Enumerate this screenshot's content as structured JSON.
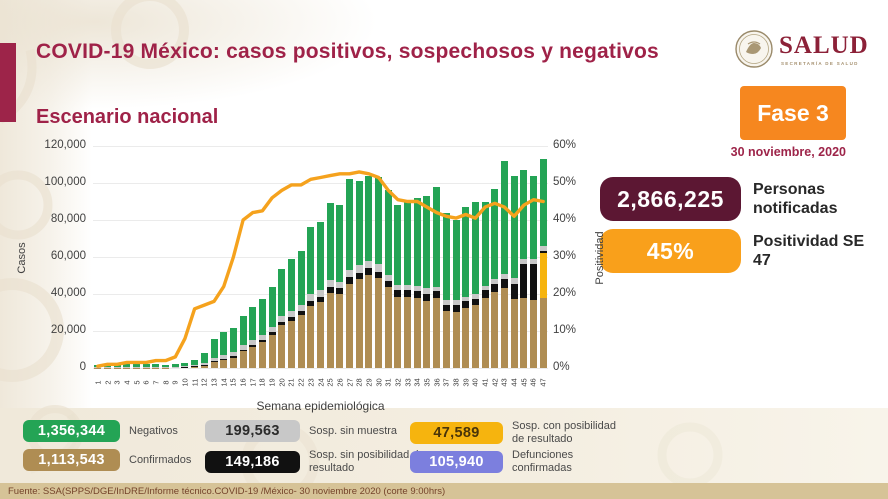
{
  "header": {
    "title": "COVID-19 México: casos positivos, sospechosos y negativos",
    "subtitle": "Escenario nacional",
    "logo_word": "SALUD",
    "logo_sub": "SECRETARÍA DE SALUD",
    "phase_label": "Fase 3",
    "phase_date": "30 noviembre, 2020"
  },
  "stats": [
    {
      "value": "2,866,225",
      "label": "Personas notificadas",
      "color": "#5c1733",
      "text_color": "#ffffff"
    },
    {
      "value": "45%",
      "label": "Positividad SE 47",
      "color": "#f9a01b",
      "text_color": "#ffffff"
    }
  ],
  "chart_data": {
    "type": "bar",
    "stacked": true,
    "xlabel": "Semana epidemiológica",
    "ylabel_left": "Casos",
    "ylabel_right": "Positividad",
    "ylim_left": [
      0,
      120000
    ],
    "ylim_right": [
      0,
      60
    ],
    "grid": true,
    "y_ticks_left": [
      "0",
      "20,000",
      "40,000",
      "60,000",
      "80,000",
      "100,000",
      "120,000"
    ],
    "y_ticks_right": [
      "0%",
      "10%",
      "20%",
      "30%",
      "40%",
      "50%",
      "60%"
    ],
    "categories": [
      "1",
      "2",
      "3",
      "4",
      "5",
      "6",
      "7",
      "8",
      "9",
      "10",
      "11",
      "12",
      "13",
      "14",
      "15",
      "16",
      "17",
      "18",
      "19",
      "20",
      "21",
      "22",
      "23",
      "24",
      "25",
      "26",
      "27",
      "28",
      "29",
      "30",
      "31",
      "32",
      "33",
      "34",
      "35",
      "36",
      "37",
      "38",
      "39",
      "40",
      "41",
      "42",
      "43",
      "44",
      "45",
      "46",
      "47"
    ],
    "series": [
      {
        "name": "Confirmados",
        "color": "#af8d53",
        "values": [
          100,
          150,
          150,
          150,
          200,
          200,
          200,
          200,
          300,
          500,
          800,
          1500,
          3000,
          4200,
          5500,
          9000,
          11500,
          14000,
          18000,
          23000,
          25500,
          28500,
          33500,
          35500,
          40500,
          40000,
          45500,
          48000,
          50500,
          48500,
          44000,
          38500,
          38500,
          38000,
          36000,
          38000,
          31000,
          30500,
          32500,
          34000,
          38000,
          41000,
          43000,
          37500,
          38000,
          37000,
          38000
        ]
      },
      {
        "name": "Sosp. con posibilidad de resultado",
        "color": "#f6b40e",
        "values": [
          0,
          0,
          0,
          0,
          0,
          0,
          0,
          0,
          0,
          0,
          0,
          0,
          0,
          0,
          0,
          0,
          0,
          0,
          0,
          0,
          0,
          0,
          0,
          0,
          0,
          0,
          0,
          0,
          0,
          0,
          0,
          0,
          0,
          0,
          0,
          0,
          0,
          0,
          0,
          0,
          0,
          0,
          0,
          0,
          0,
          0,
          24000
        ]
      },
      {
        "name": "Sosp. sin posibilidad de resultado",
        "color": "#111111",
        "values": [
          0,
          0,
          0,
          0,
          0,
          0,
          0,
          0,
          100,
          100,
          200,
          300,
          600,
          800,
          900,
          1000,
          1200,
          1400,
          1600,
          2000,
          2200,
          2400,
          2800,
          3000,
          3200,
          3000,
          3500,
          3500,
          3500,
          3500,
          3000,
          3500,
          3500,
          3500,
          4000,
          3500,
          3000,
          3500,
          3500,
          3500,
          4000,
          4500,
          5000,
          8000,
          18000,
          19000,
          1500
        ]
      },
      {
        "name": "Sosp. sin muestra",
        "color": "#c8c8c8",
        "values": [
          200,
          300,
          300,
          300,
          300,
          300,
          300,
          300,
          300,
          400,
          600,
          1000,
          1700,
          2000,
          2000,
          2200,
          2400,
          2600,
          2800,
          3000,
          3200,
          3200,
          3500,
          3500,
          3800,
          3500,
          4000,
          4000,
          4000,
          4000,
          3500,
          3000,
          3000,
          3000,
          3000,
          2500,
          2500,
          2500,
          2500,
          2500,
          2500,
          2500,
          3000,
          3000,
          3000,
          3000,
          2500
        ]
      },
      {
        "name": "Negativos",
        "color": "#24a455",
        "values": [
          1200,
          1600,
          1800,
          1750,
          1550,
          1500,
          1500,
          1300,
          1300,
          1800,
          2900,
          5200,
          10200,
          12500,
          13400,
          15800,
          17900,
          19500,
          21600,
          25500,
          28100,
          28900,
          36200,
          37000,
          41500,
          41500,
          49000,
          45500,
          46000,
          47000,
          45500,
          43000,
          45000,
          47500,
          50000,
          54000,
          47500,
          43500,
          48500,
          49500,
          45500,
          49000,
          61000,
          55500,
          48000,
          45000,
          47000
        ]
      }
    ],
    "line_series": {
      "name": "Positividad (%)",
      "color": "#f5a21d",
      "values": [
        0.5,
        1,
        1,
        1.5,
        1.5,
        1.5,
        2,
        2,
        3,
        8,
        16,
        17,
        18,
        22,
        30,
        40,
        42,
        42.5,
        46,
        48,
        49.5,
        49.5,
        51,
        51.5,
        52,
        52.5,
        52.5,
        53,
        52.5,
        51.5,
        48,
        45.5,
        45,
        45,
        43.5,
        42,
        41,
        40.5,
        41.5,
        40.5,
        43.5,
        44.5,
        43.5,
        41,
        44,
        45.5,
        45
      ]
    }
  },
  "legend": {
    "items": [
      {
        "value": "1,356,344",
        "label": "Negativos",
        "color": "#24a455",
        "text_color": "#ffffff"
      },
      {
        "value": "199,563",
        "label": "Sosp. sin muestra",
        "color": "#c8c8c8",
        "text_color": "#2b2b2b"
      },
      {
        "value": "47,589",
        "label": "Sosp. con posibilidad de resultado",
        "color": "#f6b40e",
        "text_color": "#4a3509"
      },
      {
        "value": "1,113,543",
        "label": "Confirmados",
        "color": "#af8d53",
        "text_color": "#ffffff"
      },
      {
        "value": "149,186",
        "label": "Sosp. sin posibilidad de resultado",
        "color": "#111111",
        "text_color": "#ffffff"
      },
      {
        "value": "105,940",
        "label": "Defunciones confirmadas",
        "color": "#7c7fde",
        "text_color": "#ffffff"
      }
    ]
  },
  "footer": {
    "source": "Fuente: SSA(SPPS/DGE/InDRE/Informe técnico.COVID-19 /México- 30 noviembre 2020 (corte 9:00hrs)"
  }
}
